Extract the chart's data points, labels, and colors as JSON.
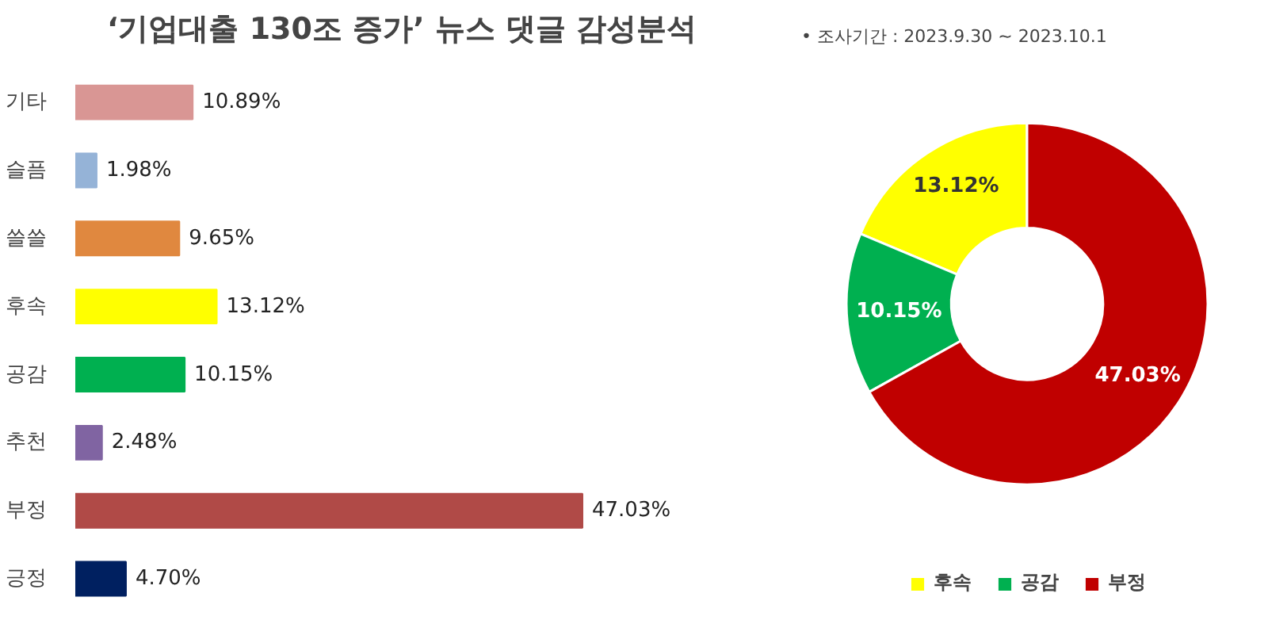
{
  "chart_data": [
    {
      "type": "bar",
      "orientation": "horizontal",
      "title": "‘기업대출 130조 증가’ 뉴스 댓글 감성분석",
      "categories": [
        "기타",
        "슬픔",
        "쓸쓸",
        "후속",
        "공감",
        "추천",
        "부정",
        "긍정"
      ],
      "values": [
        10.89,
        1.98,
        9.65,
        13.12,
        10.15,
        2.48,
        47.03,
        4.7
      ],
      "colors": [
        "#d99694",
        "#95b3d7",
        "#e0883f",
        "#ffff00",
        "#00b050",
        "#8064a2",
        "#b04a47",
        "#002060"
      ],
      "value_labels": [
        "10.89%",
        "1.98%",
        "9.65%",
        "13.12%",
        "10.15%",
        "2.48%",
        "47.03%",
        "4.70%"
      ],
      "grid": false
    },
    {
      "type": "donut",
      "annotations": [
        "•     조사기간 : 2023.9.30 ~ 2023.10.1"
      ],
      "categories": [
        "후속",
        "공감",
        "부정"
      ],
      "values": [
        13.12,
        10.15,
        47.03
      ],
      "colors": [
        "#ffff00",
        "#00b050",
        "#c00000"
      ],
      "value_labels": [
        "13.12%",
        "10.15%",
        "47.03%"
      ],
      "legend": "bottom"
    }
  ]
}
